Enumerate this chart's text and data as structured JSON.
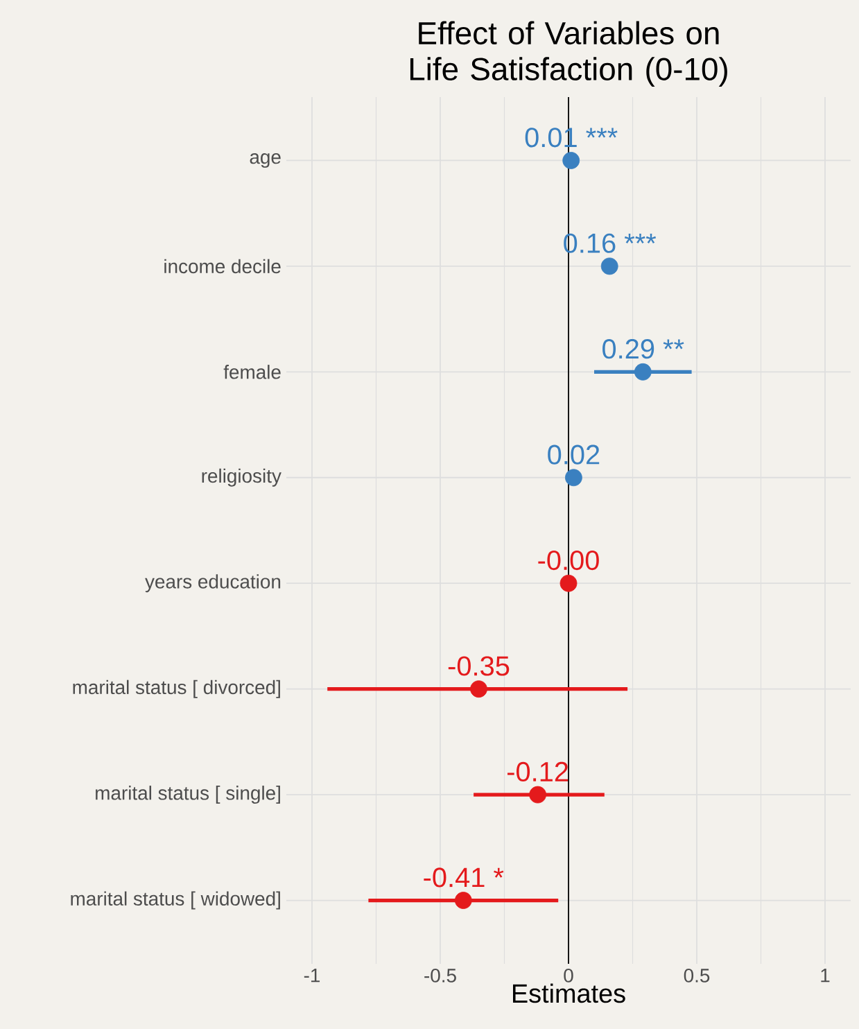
{
  "chart_data": {
    "type": "scatter",
    "orientation": "horizontal",
    "title": "Effect of Variables on Life Satisfaction (0-10)",
    "xlabel": "Estimates",
    "categories": [
      "age",
      "income decile",
      "female",
      "religiosity",
      "years education",
      "marital status [ divorced]",
      "marital status [ single]",
      "marital status [ widowed]"
    ],
    "values": [
      0.01,
      0.16,
      0.29,
      0.02,
      -0.0,
      -0.35,
      -0.12,
      -0.41
    ],
    "errors": [
      null,
      null,
      [
        0.1,
        0.48
      ],
      null,
      null,
      [
        -0.94,
        0.23
      ],
      [
        -0.37,
        0.14
      ],
      [
        -0.78,
        -0.04
      ]
    ],
    "colors": [
      "#3a80c0",
      "#3a80c0",
      "#3a80c0",
      "#3a80c0",
      "#e41a1c",
      "#e41a1c",
      "#e41a1c",
      "#e41a1c"
    ],
    "value_labels": [
      "0.01 ***",
      "0.16 ***",
      "0.29 **",
      "0.02",
      "-0.00",
      "-0.35",
      "-0.12",
      "-0.41 *"
    ],
    "xlim": [
      -1.1,
      1.1
    ],
    "xticks": [
      -1,
      -0.5,
      0,
      0.5,
      1
    ],
    "grid": true,
    "marker": "circle",
    "ref_lines": [
      {
        "axis": "x",
        "value": 0,
        "color": "#000000"
      }
    ]
  }
}
